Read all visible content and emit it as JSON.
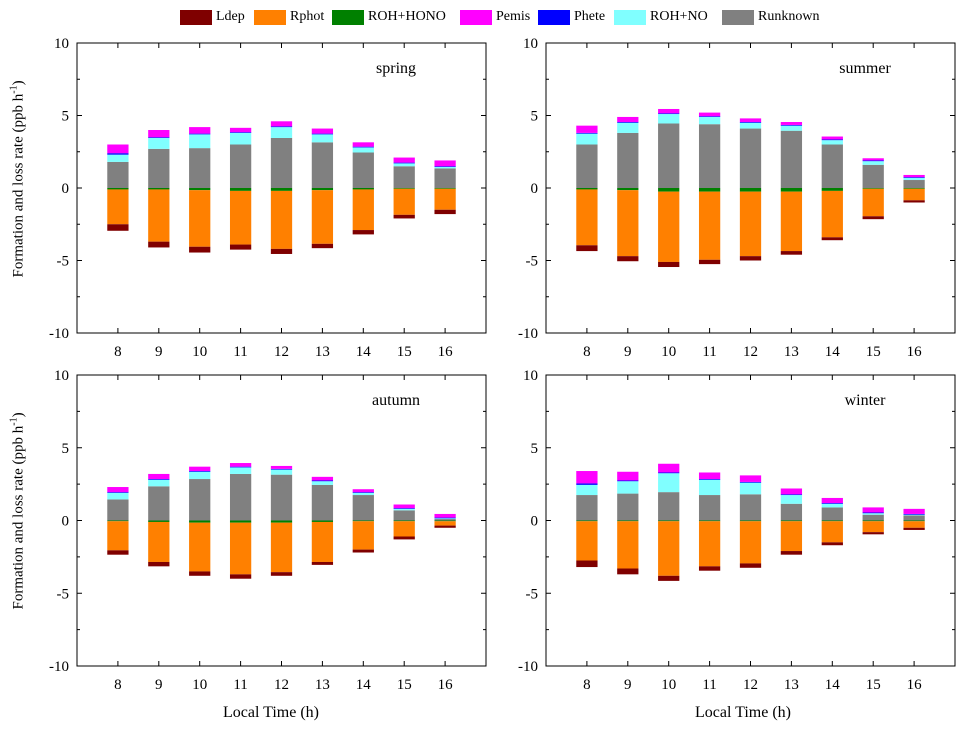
{
  "legend": [
    {
      "name": "Ldep",
      "color": "#7f0000"
    },
    {
      "name": "Rphot",
      "color": "#ff8000"
    },
    {
      "name": "ROH+HONO",
      "color": "#008000"
    },
    {
      "name": "Pemis",
      "color": "#ff00ff"
    },
    {
      "name": "Phete",
      "color": "#0000ff"
    },
    {
      "name": "ROH+NO",
      "color": "#80ffff"
    },
    {
      "name": "Runknown",
      "color": "#808080"
    }
  ],
  "axis_text": {
    "ylabel": "Formation and loss rate (ppb h",
    "ylabel_sup": "-1",
    "ylabel_end": ")",
    "xlabel": "Local Time (h)"
  },
  "chart_data": [
    {
      "type": "bar",
      "title": "spring",
      "categories": [
        "8",
        "9",
        "10",
        "11",
        "12",
        "13",
        "14",
        "15",
        "16"
      ],
      "ylim": [
        -10,
        10
      ],
      "yticks": [
        -10,
        -5,
        0,
        5,
        10
      ],
      "series": [
        {
          "name": "Runknown",
          "values": [
            1.8,
            2.7,
            2.75,
            3.0,
            3.45,
            3.15,
            2.45,
            1.5,
            1.35
          ]
        },
        {
          "name": "ROH+NO",
          "values": [
            0.5,
            0.75,
            0.95,
            0.8,
            0.75,
            0.55,
            0.35,
            0.2,
            0.1
          ]
        },
        {
          "name": "Phete",
          "values": [
            0.1,
            0.05,
            0.05,
            0.05,
            0.05,
            0.05,
            0.05,
            0.05,
            0.05
          ]
        },
        {
          "name": "Pemis",
          "values": [
            0.6,
            0.5,
            0.45,
            0.3,
            0.35,
            0.35,
            0.3,
            0.35,
            0.4
          ]
        },
        {
          "name": "ROH+HONO",
          "values": [
            -0.1,
            -0.1,
            -0.15,
            -0.2,
            -0.2,
            -0.15,
            -0.1,
            -0.05,
            -0.05
          ]
        },
        {
          "name": "Rphot",
          "values": [
            -2.4,
            -3.6,
            -3.9,
            -3.7,
            -4.0,
            -3.7,
            -2.8,
            -1.8,
            -1.45
          ]
        },
        {
          "name": "Ldep",
          "values": [
            -0.45,
            -0.4,
            -0.4,
            -0.35,
            -0.35,
            -0.3,
            -0.3,
            -0.25,
            -0.3
          ]
        }
      ]
    },
    {
      "type": "bar",
      "title": "summer",
      "categories": [
        "8",
        "9",
        "10",
        "11",
        "12",
        "13",
        "14",
        "15",
        "16"
      ],
      "ylim": [
        -10,
        10
      ],
      "yticks": [
        -10,
        -5,
        0,
        5,
        10
      ],
      "series": [
        {
          "name": "Runknown",
          "values": [
            3.0,
            3.8,
            4.45,
            4.4,
            4.1,
            3.95,
            3.0,
            1.6,
            0.55
          ]
        },
        {
          "name": "ROH+NO",
          "values": [
            0.75,
            0.7,
            0.65,
            0.5,
            0.4,
            0.35,
            0.3,
            0.25,
            0.15
          ]
        },
        {
          "name": "Phete",
          "values": [
            0.05,
            0.05,
            0.05,
            0.05,
            0.05,
            0.05,
            0.05,
            0.05,
            0.05
          ]
        },
        {
          "name": "Pemis",
          "values": [
            0.5,
            0.35,
            0.3,
            0.25,
            0.25,
            0.2,
            0.2,
            0.15,
            0.15
          ]
        },
        {
          "name": "ROH+HONO",
          "values": [
            -0.1,
            -0.15,
            -0.25,
            -0.25,
            -0.25,
            -0.25,
            -0.2,
            -0.05,
            -0.05
          ]
        },
        {
          "name": "Rphot",
          "values": [
            -3.85,
            -4.55,
            -4.85,
            -4.7,
            -4.45,
            -4.1,
            -3.2,
            -1.9,
            -0.8
          ]
        },
        {
          "name": "Ldep",
          "values": [
            -0.4,
            -0.35,
            -0.35,
            -0.3,
            -0.3,
            -0.25,
            -0.2,
            -0.2,
            -0.15
          ]
        }
      ]
    },
    {
      "type": "bar",
      "title": "autumn",
      "categories": [
        "8",
        "9",
        "10",
        "11",
        "12",
        "13",
        "14",
        "15",
        "16"
      ],
      "ylim": [
        -10,
        10
      ],
      "yticks": [
        -10,
        -5,
        0,
        5,
        10
      ],
      "series": [
        {
          "name": "Runknown",
          "values": [
            1.45,
            2.35,
            2.85,
            3.2,
            3.15,
            2.45,
            1.75,
            0.7,
            0.1
          ]
        },
        {
          "name": "ROH+NO",
          "values": [
            0.45,
            0.45,
            0.5,
            0.45,
            0.35,
            0.25,
            0.15,
            0.1,
            0.05
          ]
        },
        {
          "name": "Phete",
          "values": [
            0.05,
            0.05,
            0.05,
            0.05,
            0.05,
            0.05,
            0.05,
            0.05,
            0.05
          ]
        },
        {
          "name": "Pemis",
          "values": [
            0.35,
            0.35,
            0.3,
            0.25,
            0.2,
            0.25,
            0.2,
            0.25,
            0.25
          ]
        },
        {
          "name": "ROH+HONO",
          "values": [
            -0.05,
            -0.1,
            -0.15,
            -0.15,
            -0.15,
            -0.1,
            -0.05,
            -0.05,
            -0.05
          ]
        },
        {
          "name": "Rphot",
          "values": [
            -2.0,
            -2.75,
            -3.35,
            -3.55,
            -3.4,
            -2.75,
            -1.95,
            -1.05,
            -0.3
          ]
        },
        {
          "name": "Ldep",
          "values": [
            -0.3,
            -0.3,
            -0.3,
            -0.3,
            -0.25,
            -0.2,
            -0.2,
            -0.2,
            -0.15
          ]
        }
      ]
    },
    {
      "type": "bar",
      "title": "winter",
      "categories": [
        "8",
        "9",
        "10",
        "11",
        "12",
        "13",
        "14",
        "15",
        "16"
      ],
      "ylim": [
        -10,
        10
      ],
      "yticks": [
        -10,
        -5,
        0,
        5,
        10
      ],
      "series": [
        {
          "name": "Runknown",
          "values": [
            1.75,
            1.85,
            1.95,
            1.75,
            1.8,
            1.15,
            0.9,
            0.4,
            0.35
          ]
        },
        {
          "name": "ROH+NO",
          "values": [
            0.7,
            0.85,
            1.3,
            1.05,
            0.8,
            0.6,
            0.25,
            0.1,
            0.05
          ]
        },
        {
          "name": "Phete",
          "values": [
            0.1,
            0.05,
            0.05,
            0.05,
            0.05,
            0.05,
            0.05,
            0.05,
            0.05
          ]
        },
        {
          "name": "Pemis",
          "values": [
            0.85,
            0.6,
            0.6,
            0.45,
            0.45,
            0.4,
            0.35,
            0.35,
            0.35
          ]
        },
        {
          "name": "ROH+HONO",
          "values": [
            -0.05,
            -0.05,
            -0.05,
            -0.05,
            -0.05,
            -0.05,
            -0.05,
            -0.05,
            -0.05
          ]
        },
        {
          "name": "Rphot",
          "values": [
            -2.7,
            -3.25,
            -3.75,
            -3.1,
            -2.9,
            -2.05,
            -1.45,
            -0.75,
            -0.45
          ]
        },
        {
          "name": "Ldep",
          "values": [
            -0.45,
            -0.4,
            -0.35,
            -0.3,
            -0.3,
            -0.25,
            -0.2,
            -0.15,
            -0.15
          ]
        }
      ]
    }
  ]
}
